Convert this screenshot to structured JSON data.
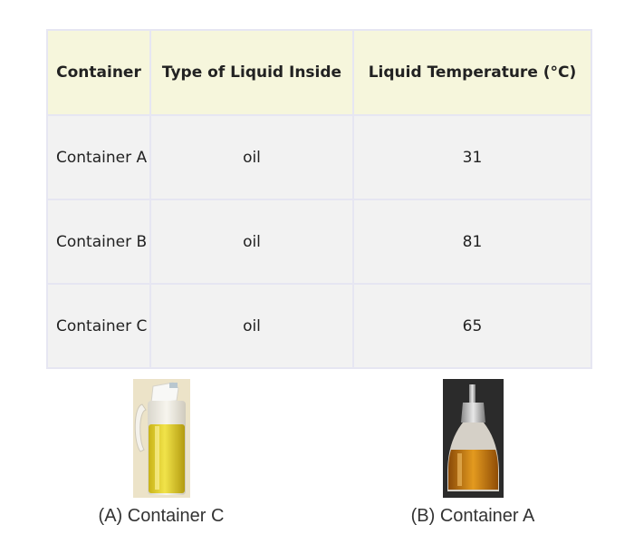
{
  "table": {
    "headers": [
      "Container",
      "Type of Liquid Inside",
      "Liquid Temperature (°C)"
    ],
    "rows": [
      {
        "container": "Container A",
        "liquid": "oil",
        "temperature": "31"
      },
      {
        "container": "Container B",
        "liquid": "oil",
        "temperature": "81"
      },
      {
        "container": "Container C",
        "liquid": "oil",
        "temperature": "65"
      }
    ]
  },
  "figures": [
    {
      "caption": "(A) Container C",
      "icon": "oil-bottle-white-cap-photo"
    },
    {
      "caption": "(B) Container A",
      "icon": "oil-dispenser-steel-spout-photo"
    }
  ],
  "colors": {
    "header_bg": "#f6f6dc",
    "row_bg": "#f2f2f2",
    "border": "#e6e6f2",
    "oil_light": "#e8d22a",
    "oil_amber": "#c8760f"
  }
}
